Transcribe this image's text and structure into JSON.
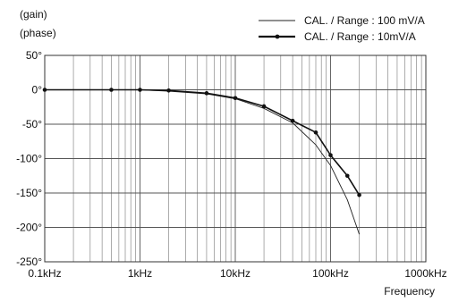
{
  "chart_data": {
    "type": "line",
    "ylabel_lines": [
      "(gain)",
      "(phase)"
    ],
    "xlabel": "Frequency",
    "x_scale": "log",
    "xlim": [
      0.1,
      1000
    ],
    "ylim": [
      -250,
      50
    ],
    "x_ticks": [
      {
        "value": 0.1,
        "label": "0.1kHz"
      },
      {
        "value": 1,
        "label": "1kHz"
      },
      {
        "value": 10,
        "label": "10kHz"
      },
      {
        "value": 100,
        "label": "100kHz"
      },
      {
        "value": 1000,
        "label": "1000kHz"
      }
    ],
    "y_ticks": [
      {
        "value": 50,
        "label": "50°"
      },
      {
        "value": 0,
        "label": "0°"
      },
      {
        "value": -50,
        "label": "-50°"
      },
      {
        "value": -100,
        "label": "-100°"
      },
      {
        "value": -150,
        "label": "-150°"
      },
      {
        "value": -200,
        "label": "-200°"
      },
      {
        "value": -250,
        "label": "-250°"
      }
    ],
    "grid": true,
    "legend_position": "top-right",
    "series": [
      {
        "name": "CAL. / Range : 100 mV/A",
        "style": "thin",
        "markers": false,
        "color": "#222222",
        "points": [
          [
            0.1,
            0
          ],
          [
            0.5,
            0
          ],
          [
            1,
            0
          ],
          [
            2,
            -2
          ],
          [
            5,
            -6
          ],
          [
            10,
            -13
          ],
          [
            20,
            -27
          ],
          [
            40,
            -48
          ],
          [
            70,
            -80
          ],
          [
            100,
            -110
          ],
          [
            150,
            -160
          ],
          [
            200,
            -210
          ]
        ]
      },
      {
        "name": "CAL. / Range : 10mV/A",
        "style": "bold",
        "markers": true,
        "color": "#111111",
        "points": [
          [
            0.1,
            0
          ],
          [
            0.5,
            0
          ],
          [
            1,
            0
          ],
          [
            2,
            -1
          ],
          [
            5,
            -5
          ],
          [
            10,
            -12
          ],
          [
            20,
            -24
          ],
          [
            40,
            -45
          ],
          [
            70,
            -62
          ],
          [
            100,
            -95
          ],
          [
            150,
            -125
          ],
          [
            200,
            -153
          ]
        ]
      }
    ]
  }
}
